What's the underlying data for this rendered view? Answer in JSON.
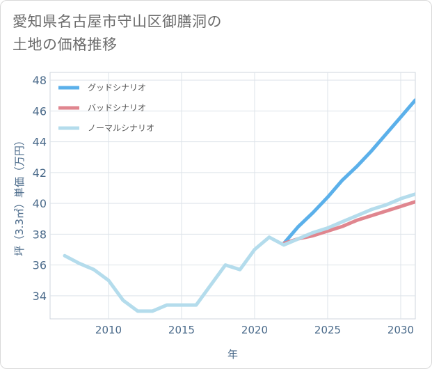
{
  "title": {
    "line1": "愛知県名古屋市守山区御膳洞の",
    "line2": "土地の価格推移"
  },
  "chart_data": {
    "type": "line",
    "xlabel": "年",
    "ylabel": "坪（3.3㎡）単価（万円）",
    "xlim": [
      2006,
      2031
    ],
    "ylim": [
      32.5,
      48.5
    ],
    "x_ticks": [
      2010,
      2015,
      2020,
      2025,
      2030
    ],
    "y_ticks": [
      34,
      36,
      38,
      40,
      42,
      44,
      46,
      48
    ],
    "grid": true,
    "legend_position": "top-left",
    "series": [
      {
        "name": "グッドシナリオ",
        "color": "#5bb0ea",
        "x": [
          2022,
          2023,
          2024,
          2025,
          2026,
          2027,
          2028,
          2029,
          2030,
          2031
        ],
        "y": [
          37.4,
          38.5,
          39.4,
          40.4,
          41.5,
          42.4,
          43.4,
          44.5,
          45.6,
          46.7
        ]
      },
      {
        "name": "バッドシナリオ",
        "color": "#e0868f",
        "x": [
          2022,
          2023,
          2024,
          2025,
          2026,
          2027,
          2028,
          2029,
          2030,
          2031
        ],
        "y": [
          37.4,
          37.7,
          37.9,
          38.2,
          38.5,
          38.9,
          39.2,
          39.5,
          39.8,
          40.1
        ]
      },
      {
        "name": "ノーマルシナリオ",
        "color": "#b4dcec",
        "x": [
          2007,
          2008,
          2009,
          2010,
          2011,
          2012,
          2013,
          2014,
          2015,
          2016,
          2017,
          2018,
          2019,
          2020,
          2021,
          2022,
          2023,
          2024,
          2025,
          2026,
          2027,
          2028,
          2029,
          2030,
          2031
        ],
        "y": [
          36.6,
          36.1,
          35.7,
          35.0,
          33.7,
          33.0,
          33.0,
          33.4,
          33.4,
          33.4,
          34.7,
          36.0,
          35.7,
          37.0,
          37.8,
          37.3,
          37.7,
          38.1,
          38.4,
          38.8,
          39.2,
          39.6,
          39.9,
          40.3,
          40.6
        ]
      }
    ]
  }
}
